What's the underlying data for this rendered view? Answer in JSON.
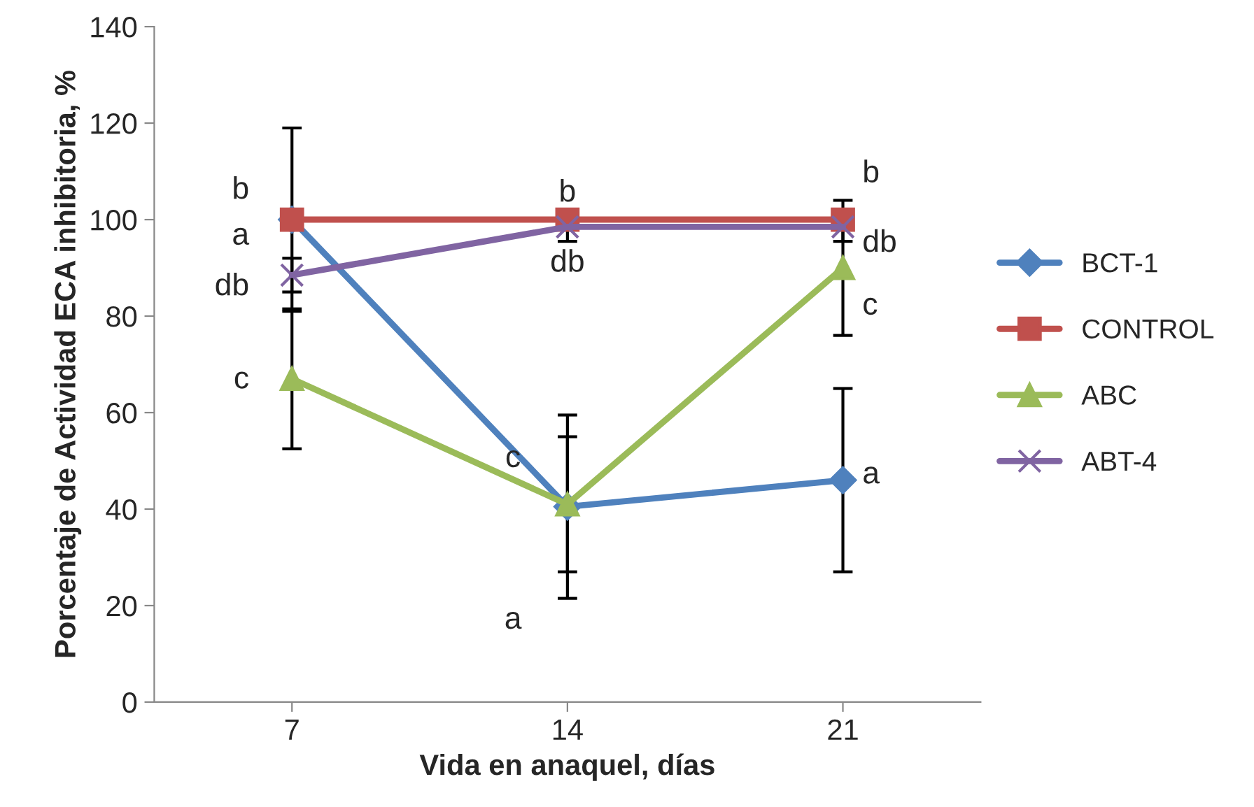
{
  "chart_data": {
    "type": "line",
    "xlabel": "Vida en anaquel, días",
    "ylabel": "Porcentaje de Actividad ECA inhibitoria, %",
    "categories": [
      "7",
      "14",
      "21"
    ],
    "series": [
      {
        "name": "BCT-1",
        "color": "#4f81bd",
        "marker": "diamond",
        "values": [
          100,
          40.5,
          46
        ],
        "errors": [
          19,
          19,
          19
        ]
      },
      {
        "name": "CONTROL",
        "color": "#c0504d",
        "marker": "square",
        "values": [
          100,
          100,
          100
        ]
      },
      {
        "name": "ABC",
        "color": "#9bbb59",
        "marker": "triangle",
        "values": [
          67,
          41,
          90
        ],
        "errors": [
          14.5,
          14,
          14
        ]
      },
      {
        "name": "ABT-4",
        "color": "#8064a2",
        "marker": "cross",
        "values": [
          88.5,
          98.5,
          98.5
        ],
        "errors": [
          3.5,
          3,
          3
        ]
      }
    ],
    "ylim": [
      0,
      140
    ],
    "yticks": [
      0,
      20,
      40,
      60,
      80,
      100,
      120,
      140
    ],
    "grid": false,
    "legend": "right",
    "annotations": [
      {
        "text": "b",
        "x": "7",
        "y": 106
      },
      {
        "text": "a",
        "x": "7",
        "y": 96.5
      },
      {
        "text": "db",
        "x": "7",
        "y": 86
      },
      {
        "text": "c",
        "x": "7",
        "y": 66.7
      },
      {
        "text": "b",
        "x": "14",
        "y": 100
      },
      {
        "text": "db",
        "x": "14",
        "y": 95.5
      },
      {
        "text": "c",
        "x": "14",
        "y": 55
      },
      {
        "text": "a",
        "x": "14",
        "y": 21.5
      },
      {
        "text": "b",
        "x": "21",
        "y": 104
      },
      {
        "text": "db",
        "x": "21",
        "y": 95
      },
      {
        "text": "c",
        "x": "21",
        "y": 82
      },
      {
        "text": "a",
        "x": "21",
        "y": 47
      }
    ]
  }
}
